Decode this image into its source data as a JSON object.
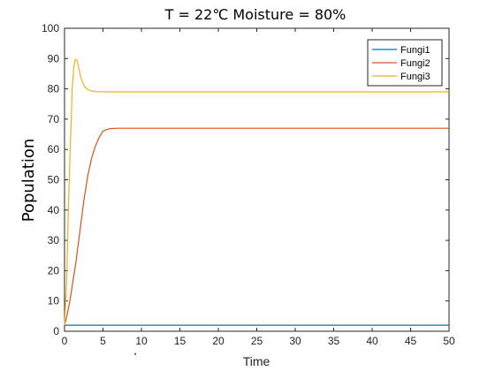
{
  "chart_data": {
    "type": "line",
    "title": "T = 22℃ Moisture = 80%",
    "xlabel": "Time",
    "ylabel": "Population",
    "xlim": [
      0,
      50
    ],
    "ylim": [
      0,
      100
    ],
    "xticks": [
      0,
      5,
      10,
      15,
      20,
      25,
      30,
      35,
      40,
      45,
      50
    ],
    "yticks": [
      0,
      10,
      20,
      30,
      40,
      50,
      60,
      70,
      80,
      90,
      100
    ],
    "grid": false,
    "legend_position": "top-right",
    "series": [
      {
        "name": "Fungi1",
        "color": "#0072BD",
        "x": [
          0,
          5,
          10,
          20,
          30,
          40,
          50
        ],
        "y": [
          2,
          2,
          2,
          2,
          2,
          2,
          2
        ]
      },
      {
        "name": "Fungi2",
        "color": "#D95319",
        "x": [
          0,
          0.3,
          0.7,
          1,
          1.5,
          2,
          2.5,
          3,
          3.5,
          4,
          4.5,
          5,
          5.5,
          6,
          7,
          8,
          10,
          15,
          20,
          30,
          40,
          50
        ],
        "y": [
          2,
          5,
          10,
          15,
          23,
          33,
          43,
          51,
          57,
          61,
          64,
          66,
          66.6,
          66.9,
          67,
          67,
          67,
          67,
          67,
          67,
          67,
          67
        ]
      },
      {
        "name": "Fungi3",
        "color": "#EDB120",
        "x": [
          0,
          0.3,
          0.5,
          0.8,
          1,
          1.2,
          1.4,
          1.6,
          1.8,
          2,
          2.3,
          2.6,
          3,
          3.5,
          4,
          5,
          6,
          8,
          10,
          20,
          30,
          40,
          50
        ],
        "y": [
          2,
          18,
          40,
          65,
          80,
          87,
          89.8,
          89.5,
          87.5,
          85,
          82.5,
          80.8,
          79.8,
          79.3,
          79.1,
          79,
          79,
          79,
          79,
          79,
          79,
          79,
          79
        ]
      }
    ]
  }
}
